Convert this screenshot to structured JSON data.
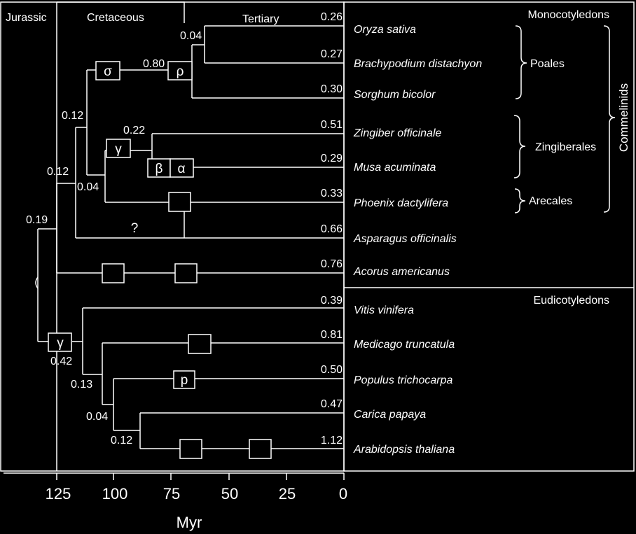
{
  "colors": {
    "background": "#000000",
    "foreground": "#ffffff"
  },
  "periods": {
    "jurassic": "Jurassic",
    "cretaceous": "Cretaceous",
    "tertiary": "Tertiary"
  },
  "groups": {
    "monocots": "Monocotyledons",
    "eudicots": "Eudicotyledons",
    "poales": "Poales",
    "zingiberales": "Zingiberales",
    "arecales": "Arecales",
    "commelinids": "Commelinids"
  },
  "species": [
    {
      "name": "Oryza sativa",
      "ks": "0.26"
    },
    {
      "name": "Brachypodium distachyon",
      "ks": "0.27"
    },
    {
      "name": "Sorghum bicolor",
      "ks": "0.30"
    },
    {
      "name": "Zingiber officinale",
      "ks": "0.51"
    },
    {
      "name": "Musa acuminata",
      "ks": "0.29"
    },
    {
      "name": "Phoenix dactylifera",
      "ks": "0.33"
    },
    {
      "name": "Asparagus officinalis",
      "ks": "0.66"
    },
    {
      "name": "Acorus americanus",
      "ks": "0.76"
    },
    {
      "name": "Vitis vinifera",
      "ks": "0.39"
    },
    {
      "name": "Medicago truncatula",
      "ks": "0.81"
    },
    {
      "name": "Populus trichocarpa",
      "ks": "0.50"
    },
    {
      "name": "Carica papaya",
      "ks": "0.47"
    },
    {
      "name": "Arabidopsis thaliana",
      "ks": "1.12"
    }
  ],
  "node_values": {
    "poales_crown": "0.04",
    "sigma_rho": "0.80",
    "commelinid": "0.12",
    "zing_musa": "0.22",
    "commelinid_phoenix": "0.04",
    "monocot_asparagus": "0.12",
    "monocot_root": "0.19",
    "eudicot_gamma": "0.42",
    "eudicot_medicago": "0.13",
    "eudicot_populus": "0.04",
    "eudicot_brassicales": "0.12"
  },
  "wgd_labels": {
    "sigma": "σ",
    "rho": "ρ",
    "gamma_monocot": "γ",
    "beta": "β",
    "alpha": "α",
    "gamma_eudicot": "γ",
    "p_populus": "p",
    "unknown": "?"
  },
  "axis": {
    "ticks": [
      "125",
      "100",
      "75",
      "50",
      "25",
      "0"
    ],
    "label": "Myr"
  }
}
